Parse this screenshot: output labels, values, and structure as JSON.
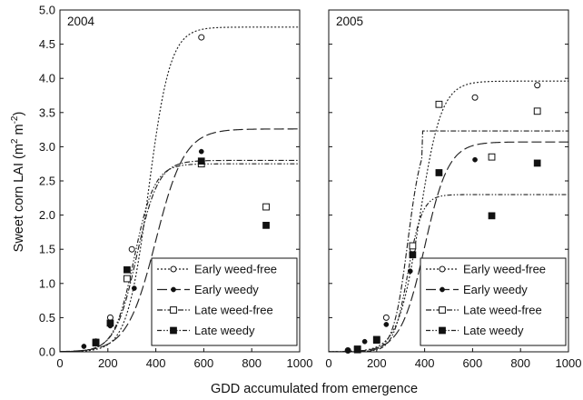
{
  "figure": {
    "x_axis_label": "GDD accumulated from emergence",
    "y_axis_label_main": "Sweet corn LAI (m",
    "y_axis_label_sup1": "2",
    "y_axis_label_mid": " m",
    "y_axis_label_sup2": "-2",
    "y_axis_label_end": ")"
  },
  "legend_entries": [
    "Early weed-free",
    "Early weedy",
    "Late weed-free",
    "Late weedy"
  ],
  "chart_data": [
    {
      "type": "scatter",
      "panel_label": "2004",
      "xlim": [
        0,
        1000
      ],
      "ylim": [
        0,
        5
      ],
      "x_ticks": [
        "0",
        "200",
        "400",
        "600",
        "800",
        "1000"
      ],
      "y_ticks": [
        "0.0",
        "0.5",
        "1.0",
        "1.5",
        "2.0",
        "2.5",
        "3.0",
        "3.5",
        "4.0",
        "4.5",
        "5.0"
      ],
      "series": [
        {
          "name": "Early weed-free",
          "marker": "open-circle",
          "line": "dotted",
          "points": [
            [
              150,
              0.15
            ],
            [
              210,
              0.5
            ],
            [
              300,
              1.5
            ],
            [
              590,
              4.6
            ]
          ],
          "fit": {
            "asym": 4.75,
            "mid": 370,
            "slope": 45
          }
        },
        {
          "name": "Early weedy",
          "marker": "filled-circle",
          "line": "long-dash",
          "points": [
            [
              100,
              0.08
            ],
            [
              210,
              0.38
            ],
            [
              310,
              0.93
            ],
            [
              590,
              2.93
            ]
          ],
          "fit": {
            "asym": 3.26,
            "mid": 400,
            "slope": 60
          }
        },
        {
          "name": "Late weed-free",
          "marker": "open-square",
          "line": "dash-dot",
          "points": [
            [
              150,
              0.13
            ],
            [
              280,
              1.07
            ],
            [
              590,
              2.75
            ],
            [
              860,
              2.12
            ]
          ],
          "fit": {
            "asym": 2.8,
            "mid": 320,
            "slope": 45
          }
        },
        {
          "name": "Late weedy",
          "marker": "filled-square",
          "line": "dash-dot-dot",
          "points": [
            [
              150,
              0.14
            ],
            [
              210,
              0.42
            ],
            [
              280,
              1.2
            ],
            [
              590,
              2.79
            ],
            [
              860,
              1.85
            ]
          ],
          "fit": {
            "asym": 2.75,
            "mid": 310,
            "slope": 42
          }
        }
      ]
    },
    {
      "type": "scatter",
      "panel_label": "2005",
      "xlim": [
        0,
        1000
      ],
      "ylim": [
        0,
        5
      ],
      "x_ticks": [
        "0",
        "200",
        "400",
        "600",
        "800",
        "1000"
      ],
      "y_ticks": [
        "0.0",
        "0.5",
        "1.0",
        "1.5",
        "2.0",
        "2.5",
        "3.0",
        "3.5",
        "4.0",
        "4.5",
        "5.0"
      ],
      "series": [
        {
          "name": "Early weed-free",
          "marker": "open-circle",
          "line": "dotted",
          "points": [
            [
              80,
              0.02
            ],
            [
              240,
              0.5
            ],
            [
              350,
              1.5
            ],
            [
              610,
              3.72
            ],
            [
              870,
              3.9
            ]
          ],
          "fit": {
            "asym": 3.96,
            "mid": 380,
            "slope": 45
          }
        },
        {
          "name": "Early weedy",
          "marker": "filled-circle",
          "line": "long-dash",
          "points": [
            [
              80,
              0.02
            ],
            [
              150,
              0.15
            ],
            [
              240,
              0.4
            ],
            [
              340,
              1.18
            ],
            [
              610,
              2.81
            ],
            [
              870,
              1.13
            ]
          ],
          "fit": {
            "asym": 3.07,
            "mid": 400,
            "slope": 50
          }
        },
        {
          "name": "Late weed-free",
          "marker": "open-square",
          "line": "dash-dot",
          "points": [
            [
              120,
              0.04
            ],
            [
              200,
              0.18
            ],
            [
              350,
              1.55
            ],
            [
              460,
              3.62
            ],
            [
              680,
              2.85
            ],
            [
              870,
              3.52
            ]
          ],
          "fit": {
            "asym": 3.23,
            "mid": 330,
            "slope": 30,
            "cap_at": 390
          }
        },
        {
          "name": "Late weedy",
          "marker": "filled-square",
          "line": "dash-dot-dot",
          "points": [
            [
              120,
              0.03
            ],
            [
              200,
              0.17
            ],
            [
              350,
              1.42
            ],
            [
              460,
              2.62
            ],
            [
              680,
              1.99
            ],
            [
              870,
              2.76
            ]
          ],
          "fit": {
            "asym": 2.3,
            "mid": 330,
            "slope": 30
          }
        }
      ]
    }
  ]
}
